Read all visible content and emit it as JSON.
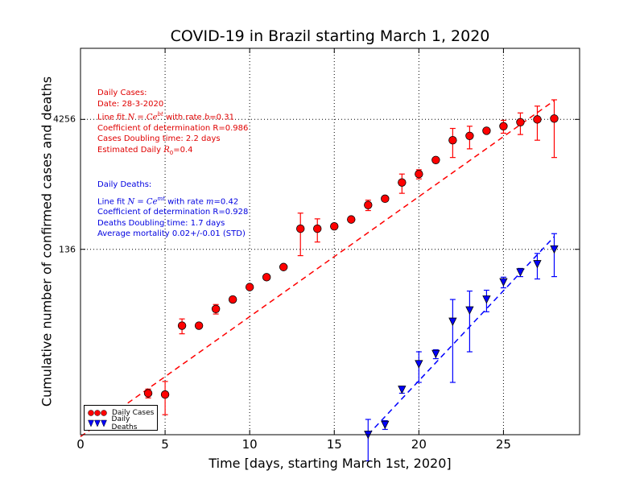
{
  "chart_data": {
    "type": "scatter",
    "title": "COVID-19 in Brazil starting March 1, 2020",
    "xlabel": "Time [days, starting March 1st, 2020]",
    "ylabel": "Cumulative number of confirmed cases and deaths",
    "xlim": [
      0,
      29.5
    ],
    "ylim_log": [
      1,
      28000
    ],
    "y_scale": "log",
    "x_ticks": [
      "0",
      "5",
      "10",
      "15",
      "20",
      "25"
    ],
    "y_ticks": [
      {
        "label": "4256",
        "value": 4256
      },
      {
        "label": "136",
        "value": 136
      }
    ],
    "grid": true,
    "series": [
      {
        "name": "Daily Cases",
        "color": "#ff0000",
        "marker": "circle",
        "points": [
          {
            "x": 4,
            "y": 3,
            "err": 0.35
          },
          {
            "x": 5,
            "y": 2.9,
            "err": 1.2
          },
          {
            "x": 6,
            "y": 18,
            "err": 3.5
          },
          {
            "x": 7,
            "y": 18,
            "err": 0.3
          },
          {
            "x": 8,
            "y": 28,
            "err": 3.5
          },
          {
            "x": 9,
            "y": 36,
            "err": 0.5
          },
          {
            "x": 10,
            "y": 50,
            "err": 1
          },
          {
            "x": 11,
            "y": 65,
            "err": 2
          },
          {
            "x": 12,
            "y": 85,
            "err": 3
          },
          {
            "x": 13,
            "y": 235,
            "err": 120
          },
          {
            "x": 14,
            "y": 235,
            "err": 70
          },
          {
            "x": 15,
            "y": 250,
            "err": 15
          },
          {
            "x": 16,
            "y": 300,
            "err": 5
          },
          {
            "x": 17,
            "y": 440,
            "err": 60
          },
          {
            "x": 18,
            "y": 520,
            "err": 8
          },
          {
            "x": 19,
            "y": 800,
            "err": 200
          },
          {
            "x": 20,
            "y": 1000,
            "err": 120
          },
          {
            "x": 21,
            "y": 1450,
            "err": 20
          },
          {
            "x": 22,
            "y": 2450,
            "err": 900
          },
          {
            "x": 23,
            "y": 2750,
            "err": 800
          },
          {
            "x": 24,
            "y": 3150,
            "err": 20
          },
          {
            "x": 25,
            "y": 3550,
            "err": 600
          },
          {
            "x": 26,
            "y": 3950,
            "err": 1100
          },
          {
            "x": 27,
            "y": 4250,
            "err": 1800
          },
          {
            "x": 28,
            "y": 4350,
            "err": 2800
          }
        ],
        "fit": {
          "x": [
            0,
            28
          ],
          "y": [
            0.95,
            7000
          ]
        }
      },
      {
        "name": "Daily Deaths",
        "color": "#0000ff",
        "marker": "triangle-down",
        "points": [
          {
            "x": 17,
            "y": 1,
            "err": 0.5
          },
          {
            "x": 18,
            "y": 1.3,
            "err": 0.15
          },
          {
            "x": 19,
            "y": 3.3,
            "err": 0.3
          },
          {
            "x": 20,
            "y": 6.5,
            "err": 2.5
          },
          {
            "x": 21,
            "y": 8.5,
            "err": 1
          },
          {
            "x": 22,
            "y": 20,
            "err": 16
          },
          {
            "x": 23,
            "y": 27,
            "err": 18
          },
          {
            "x": 24,
            "y": 36,
            "err": 10
          },
          {
            "x": 25,
            "y": 57,
            "err": 8
          },
          {
            "x": 26,
            "y": 74,
            "err": 8
          },
          {
            "x": 27,
            "y": 92,
            "err": 30
          },
          {
            "x": 28,
            "y": 136,
            "err": 70
          }
        ],
        "fit": {
          "x": [
            17,
            28
          ],
          "y": [
            1,
            190
          ]
        }
      }
    ],
    "legend_position": "lower-left"
  },
  "annotations": {
    "cases": {
      "header": "Daily Cases:",
      "date": "Date: 28-3-2020",
      "fit_prefix": "Line fit",
      "fit_formula": "N = Ce",
      "fit_exp": "bt",
      "fit_rate_text": "with rate",
      "fit_rate_var": "b",
      "fit_rate_val": "=0.31",
      "coef": "Coefficient of determination R=0.986",
      "doubling": "Cases Doubling time: 2.2 days",
      "r0_prefix": "Estimated Daily",
      "r0_var": "R",
      "r0_sub": "0",
      "r0_val": "=0.4"
    },
    "deaths": {
      "header": "Daily Deaths:",
      "fit_prefix": "Line fit",
      "fit_formula": "N = Ce",
      "fit_exp": "mt",
      "fit_rate_text": "with rate",
      "fit_rate_var": "m",
      "fit_rate_val": "=0.42",
      "coef": "Coefficient of determination R=0.928",
      "doubling": "Deaths Doubling time: 1.7 days",
      "mortality": "Average mortality 0.02+/-0.01 (STD)"
    }
  }
}
